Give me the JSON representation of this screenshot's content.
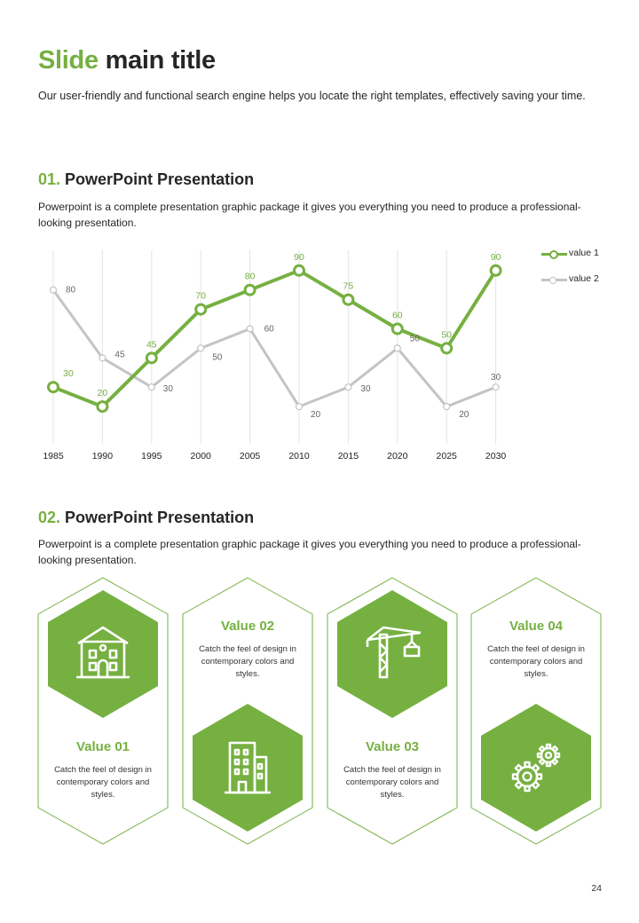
{
  "title": {
    "accent": "Slide",
    "rest": "main title"
  },
  "subtitle": "Our user-friendly and functional search engine helps you locate the right templates, effectively saving your time.",
  "sections": [
    {
      "number": "01.",
      "heading": "PowerPoint Presentation",
      "text": "Powerpoint is a complete presentation graphic package it gives you everything you need to produce a professional-looking presentation."
    },
    {
      "number": "02.",
      "heading": "PowerPoint Presentation",
      "text": "Powerpoint is a complete presentation graphic package it gives you everything you need to produce a professional-looking presentation."
    }
  ],
  "chart_data": {
    "type": "line",
    "x": [
      "1985",
      "1990",
      "1995",
      "2000",
      "2005",
      "2010",
      "2015",
      "2020",
      "2025",
      "2030"
    ],
    "ylim": [
      0,
      100
    ],
    "grid": "vertical",
    "legend_position": "top-right",
    "series": [
      {
        "name": "value 1",
        "values": [
          30,
          20,
          45,
          70,
          80,
          90,
          75,
          60,
          50,
          90
        ],
        "color": "#76b041"
      },
      {
        "name": "value 2",
        "values": [
          80,
          45,
          30,
          50,
          60,
          20,
          30,
          50,
          20,
          30
        ],
        "color": "#c4c4c4"
      }
    ]
  },
  "cards": [
    {
      "title": "Value 01",
      "text": "Catch the feel of design in contemporary colors and styles.",
      "icon": "house-icon",
      "icon_position": "top"
    },
    {
      "title": "Value 02",
      "text": "Catch the feel of design in contemporary colors and styles.",
      "icon": "building-icon",
      "icon_position": "bottom"
    },
    {
      "title": "Value 03",
      "text": "Catch the feel of design in contemporary colors and styles.",
      "icon": "crane-icon",
      "icon_position": "top"
    },
    {
      "title": "Value 04",
      "text": "Catch the feel of design in contemporary colors and styles.",
      "icon": "gears-icon",
      "icon_position": "bottom"
    }
  ],
  "page_number": "24",
  "colors": {
    "accent": "#76b041",
    "muted": "#c4c4c4",
    "text": "#262626"
  }
}
